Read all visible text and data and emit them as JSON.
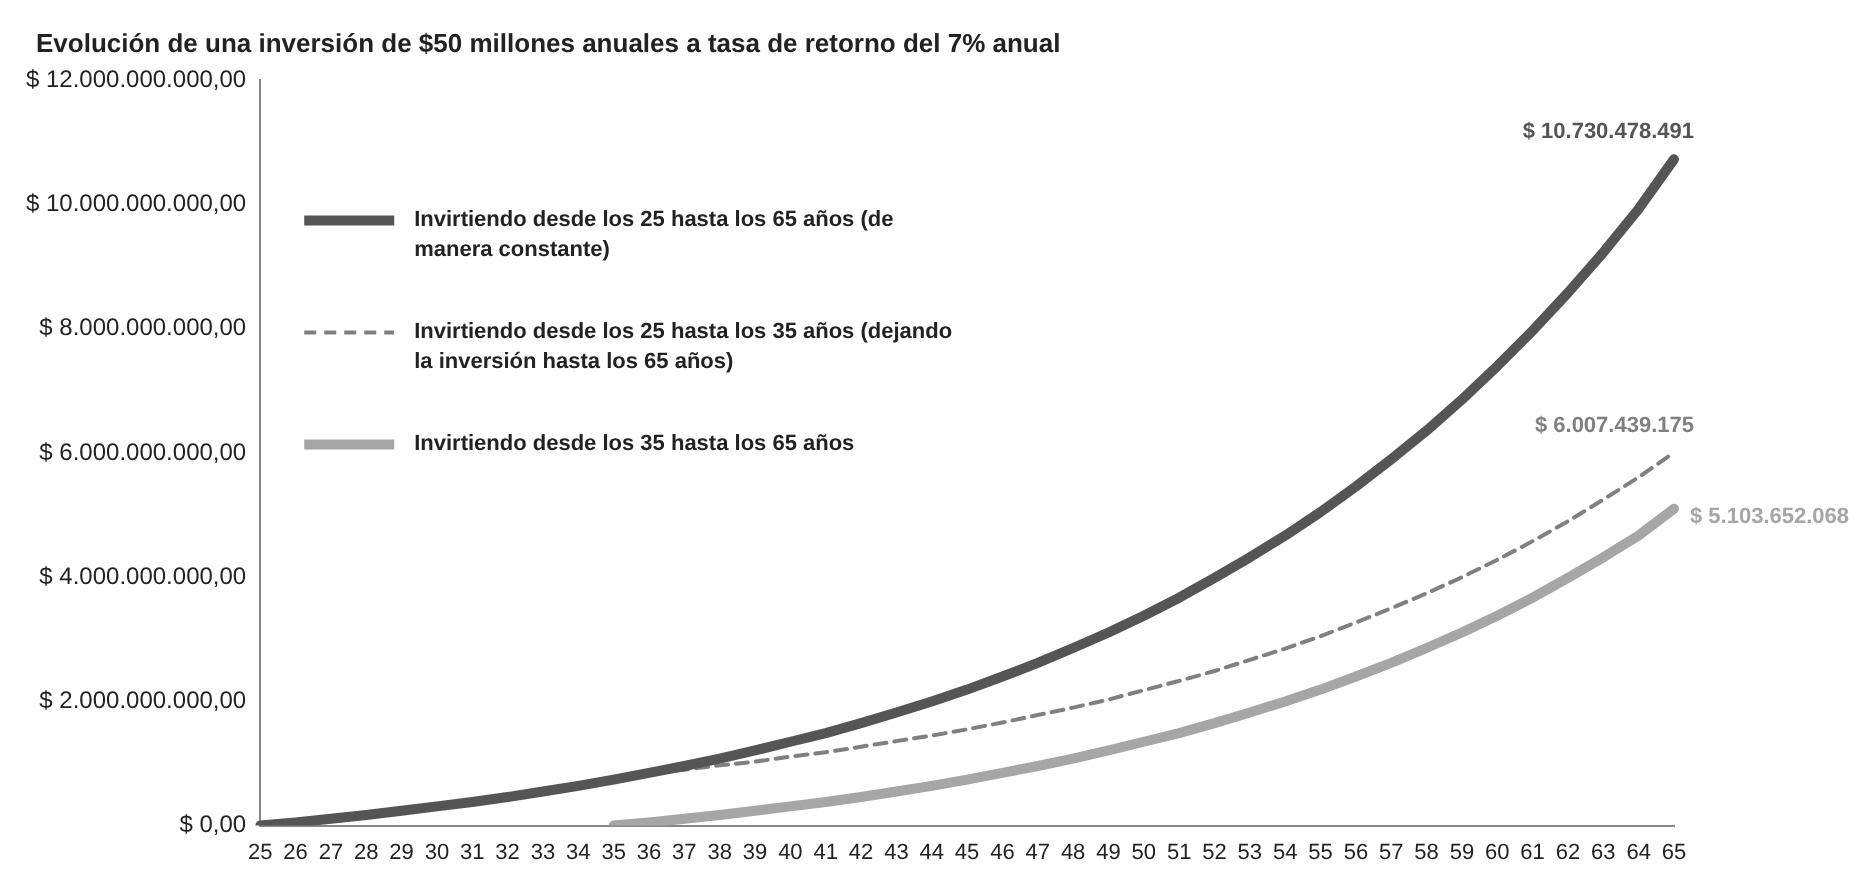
{
  "chart_data": {
    "type": "line",
    "title": "Evolución de una inversión de $50 millones anuales a tasa de retorno del 7% anual",
    "categories": [
      "25",
      "26",
      "27",
      "28",
      "29",
      "30",
      "31",
      "32",
      "33",
      "34",
      "35",
      "36",
      "37",
      "38",
      "39",
      "40",
      "41",
      "42",
      "43",
      "44",
      "45",
      "46",
      "47",
      "48",
      "49",
      "50",
      "51",
      "52",
      "53",
      "54",
      "55",
      "56",
      "57",
      "58",
      "59",
      "60",
      "61",
      "62",
      "63",
      "64",
      "65"
    ],
    "series": [
      {
        "name": "Invirtiendo desde los 25 hasta los 65 años (de manera constante)",
        "color": "#555555",
        "line_style": "solid",
        "values": [
          0,
          50000000,
          110000000,
          170000000,
          240000000,
          310000000,
          380000000,
          460000000,
          550000000,
          640000000,
          740000000,
          850000000,
          960000000,
          1080000000,
          1210000000,
          1350000000,
          1490000000,
          1650000000,
          1820000000,
          2000000000,
          2190000000,
          2400000000,
          2620000000,
          2860000000,
          3110000000,
          3380000000,
          3670000000,
          3990000000,
          4320000000,
          4670000000,
          5050000000,
          5460000000,
          5900000000,
          6360000000,
          6860000000,
          7400000000,
          7970000000,
          8580000000,
          9230000000,
          9930000000,
          10730478491
        ]
      },
      {
        "name": "Invirtiendo desde los 25 hasta los 35 años (dejando la inversión hasta los 65 años)",
        "color": "#808080",
        "line_style": "dashed",
        "values": [
          0,
          50000000,
          110000000,
          170000000,
          240000000,
          310000000,
          380000000,
          460000000,
          550000000,
          640000000,
          770000000,
          840000000,
          900000000,
          970000000,
          1030000000,
          1110000000,
          1180000000,
          1270000000,
          1360000000,
          1450000000,
          1550000000,
          1660000000,
          1780000000,
          1900000000,
          2030000000,
          2180000000,
          2330000000,
          2490000000,
          2670000000,
          2850000000,
          3050000000,
          3270000000,
          3500000000,
          3740000000,
          4000000000,
          4280000000,
          4580000000,
          4900000000,
          5250000000,
          5610000000,
          6007439175
        ]
      },
      {
        "name": "Invirtiendo desde los 35 hasta los 65 años",
        "color": "#a6a6a6",
        "line_style": "solid",
        "values": [
          null,
          null,
          null,
          null,
          null,
          null,
          null,
          null,
          null,
          null,
          0,
          50000000,
          110000000,
          170000000,
          240000000,
          310000000,
          380000000,
          460000000,
          550000000,
          640000000,
          740000000,
          850000000,
          960000000,
          1080000000,
          1210000000,
          1350000000,
          1490000000,
          1650000000,
          1820000000,
          2000000000,
          2190000000,
          2400000000,
          2620000000,
          2860000000,
          3110000000,
          3380000000,
          3670000000,
          3990000000,
          4320000000,
          4670000000,
          5103652068
        ]
      }
    ],
    "ylim": [
      0,
      12000000000
    ],
    "yticks": [
      {
        "value": 0,
        "label": "$ 0,00"
      },
      {
        "value": 2000000000,
        "label": "$ 2.000.000.000,00"
      },
      {
        "value": 4000000000,
        "label": "$ 4.000.000.000,00"
      },
      {
        "value": 6000000000,
        "label": "$ 6.000.000.000,00"
      },
      {
        "value": 8000000000,
        "label": "$ 8.000.000.000,00"
      },
      {
        "value": 10000000000,
        "label": "$ 10.000.000.000,00"
      },
      {
        "value": 12000000000,
        "label": "$ 12.000.000.000,00"
      }
    ],
    "grid": false,
    "legend": "top left",
    "annotations": [
      {
        "text": "$ 10.730.478.491",
        "x": "65",
        "y": 10730478491
      },
      {
        "text": "$ 6.007.439.175",
        "x": "65",
        "y": 6007439175
      },
      {
        "text": "$ 5.103.652.068",
        "x": "65",
        "y": 5103652068
      }
    ]
  }
}
